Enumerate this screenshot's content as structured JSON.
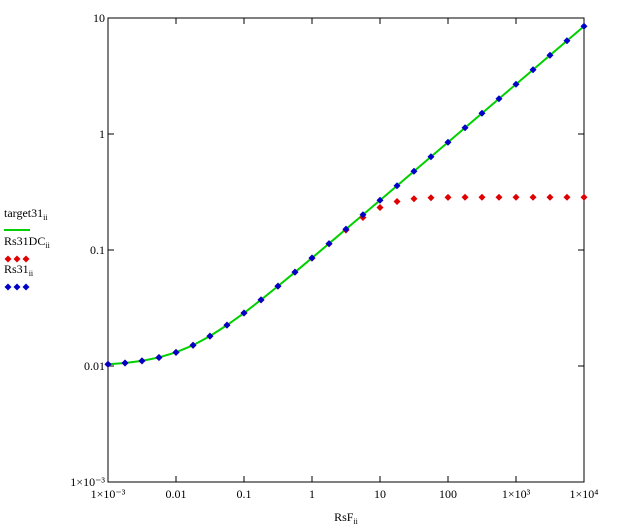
{
  "chart_data": {
    "type": "line",
    "xlabel": "RsF",
    "xlabel_subscript": "ii",
    "xscale": "log",
    "yscale": "log",
    "xlim": [
      0.001,
      10000
    ],
    "ylim": [
      0.001,
      10
    ],
    "xticks": [
      {
        "value": 0.001,
        "label": "1×10⁻³"
      },
      0.01,
      0.1,
      1,
      10,
      100,
      {
        "value": 1000,
        "label": "1×10³"
      },
      {
        "value": 10000,
        "label": "1×10⁴"
      }
    ],
    "yticks": [
      {
        "value": 0.001,
        "label": "1×10⁻³"
      },
      0.01,
      0.1,
      1,
      10
    ],
    "grid": false,
    "legend": "left",
    "x": [
      0.001,
      0.00178,
      0.00316,
      0.00562,
      0.01,
      0.0178,
      0.0316,
      0.0562,
      0.1,
      0.178,
      0.316,
      0.562,
      1,
      1.78,
      3.16,
      5.62,
      10,
      17.8,
      31.6,
      56.2,
      100,
      178,
      316,
      562,
      1000,
      1780,
      3160,
      5620,
      10000
    ],
    "series": [
      {
        "name": "target31",
        "name_subscript": "ii",
        "color": "#00d000",
        "style": "line",
        "values": [
          0.01035,
          0.01062,
          0.01108,
          0.01185,
          0.01311,
          0.0151,
          0.0181,
          0.0225,
          0.0286,
          0.0372,
          0.0488,
          0.0644,
          0.0854,
          0.1136,
          0.1513,
          0.2015,
          0.2685,
          0.3578,
          0.4775,
          0.6364,
          0.8485,
          1.1314,
          1.51,
          2.012,
          2.683,
          3.578,
          4.775,
          6.364,
          8.485
        ]
      },
      {
        "name": "Rs31DC",
        "name_subscript": "ii",
        "color": "#e00000",
        "style": "markers",
        "values": [
          0.01035,
          0.01062,
          0.01108,
          0.01185,
          0.01311,
          0.0151,
          0.0181,
          0.0225,
          0.0286,
          0.0372,
          0.0488,
          0.0644,
          0.0852,
          0.1129,
          0.1484,
          0.1906,
          0.2322,
          0.2619,
          0.2766,
          0.2822,
          0.2841,
          0.2847,
          0.285,
          0.285,
          0.285,
          0.285,
          0.285,
          0.285,
          0.285
        ]
      },
      {
        "name": "Rs31",
        "name_subscript": "ii",
        "color": "#0000c8",
        "style": "markers",
        "values": [
          0.01035,
          0.01062,
          0.01108,
          0.01185,
          0.01311,
          0.0151,
          0.0181,
          0.0225,
          0.0286,
          0.0372,
          0.0488,
          0.0644,
          0.0854,
          0.1136,
          0.1513,
          0.2015,
          0.2685,
          0.3578,
          0.4775,
          0.6364,
          0.8485,
          1.1314,
          1.51,
          2.012,
          2.683,
          3.578,
          4.775,
          6.364,
          8.485
        ]
      }
    ]
  }
}
